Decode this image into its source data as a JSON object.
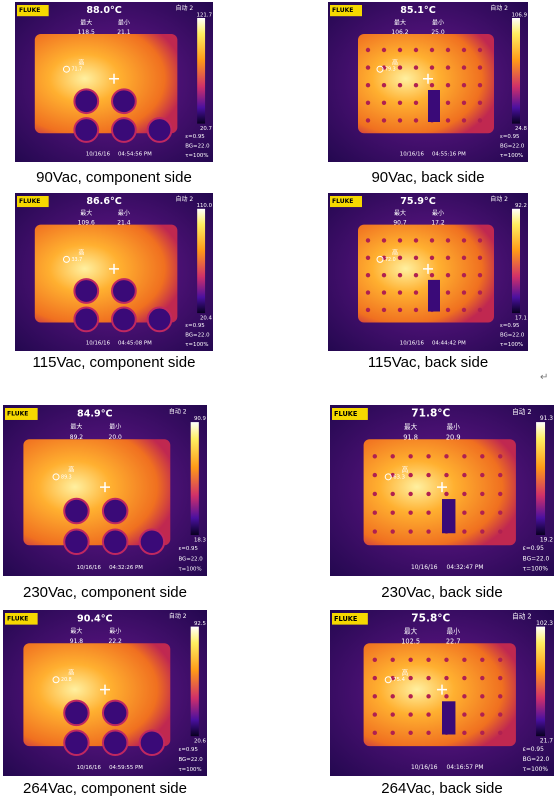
{
  "panels": [
    {
      "caption": "90Vac, component side",
      "brand": "FLUKE",
      "mode": "自动 2",
      "center_temp": "88.0°C",
      "max_label": "最大",
      "max": "118.5",
      "min_label": "最小",
      "min": "21.1",
      "spot": "71.7",
      "hot_marker": "高",
      "scale_max": "121.7",
      "scale_min": "20.7",
      "date": "10/16/16",
      "time": "04:54:56 PM",
      "emissivity": "ε=0.95",
      "background": "BG=22.0",
      "transmission": "τ=100%"
    },
    {
      "caption": "90Vac, back side",
      "brand": "FLUKE",
      "mode": "自动 2",
      "center_temp": "85.1°C",
      "max_label": "最大",
      "max": "106.2",
      "min_label": "最小",
      "min": "25.0",
      "spot": "79.3",
      "hot_marker": "高",
      "scale_max": "106.9",
      "scale_min": "24.8",
      "date": "10/16/16",
      "time": "04:55:16 PM",
      "emissivity": "ε=0.95",
      "background": "BG=22.0",
      "transmission": "τ=100%"
    },
    {
      "caption": "115Vac, component side",
      "brand": "FLUKE",
      "mode": "自动 2",
      "center_temp": "86.6°C",
      "max_label": "最大",
      "max": "109.6",
      "min_label": "最小",
      "min": "21.4",
      "spot": "33.7",
      "hot_marker": "高",
      "scale_max": "110.0",
      "scale_min": "20.4",
      "date": "10/16/16",
      "time": "04:45:08 PM",
      "emissivity": "ε=0.95",
      "background": "BG=22.0",
      "transmission": "τ=100%"
    },
    {
      "caption": "115Vac, back side",
      "brand": "FLUKE",
      "mode": "自动 2",
      "center_temp": "75.9°C",
      "max_label": "最大",
      "max": "90.7",
      "min_label": "最小",
      "min": "17.2",
      "spot": "72.0",
      "hot_marker": "高",
      "scale_max": "92.2",
      "scale_min": "17.1",
      "date": "10/16/16",
      "time": "04:44:42 PM",
      "emissivity": "ε=0.95",
      "background": "BG=22.0",
      "transmission": "τ=100%"
    },
    {
      "caption": "230Vac, component side",
      "brand": "FLUKE",
      "mode": "自动 2",
      "center_temp": "84.9°C",
      "max_label": "最大",
      "max": "89.2",
      "min_label": "最小",
      "min": "20.0",
      "spot": "89.3",
      "hot_marker": "高",
      "scale_max": "90.9",
      "scale_min": "18.3",
      "date": "10/16/16",
      "time": "04:32:26 PM",
      "emissivity": "ε=0.95",
      "background": "BG=22.0",
      "transmission": "τ=100%"
    },
    {
      "caption": "230Vac, back side",
      "brand": "FLUKE",
      "mode": "自动 2",
      "center_temp": "71.8°C",
      "max_label": "最大",
      "max": "91.8",
      "min_label": "最小",
      "min": "20.9",
      "spot": "63.3",
      "hot_marker": "高",
      "scale_max": "91.3",
      "scale_min": "19.2",
      "date": "10/16/16",
      "time": "04:32:47 PM",
      "emissivity": "ε=0.95",
      "background": "BG=22.0",
      "transmission": "τ=100%"
    },
    {
      "caption": "264Vac, component side",
      "brand": "FLUKE",
      "mode": "自动 2",
      "center_temp": "90.4°C",
      "max_label": "最大",
      "max": "91.8",
      "min_label": "最小",
      "min": "22.2",
      "spot": "20.8",
      "hot_marker": "高",
      "scale_max": "92.5",
      "scale_min": "20.6",
      "date": "10/16/16",
      "time": "04:59:55 PM",
      "emissivity": "ε=0.95",
      "background": "BG=22.0",
      "transmission": "τ=100%"
    },
    {
      "caption": "264Vac, back side",
      "brand": "FLUKE",
      "mode": "自动 2",
      "center_temp": "75.8°C",
      "max_label": "最大",
      "max": "102.5",
      "min_label": "最小",
      "min": "22.7",
      "spot": "75.4",
      "hot_marker": "高",
      "scale_max": "102.3",
      "scale_min": "21.7",
      "date": "10/16/16",
      "time": "04:16:57 PM",
      "emissivity": "ε=0.95",
      "background": "BG=22.0",
      "transmission": "τ=100%"
    }
  ],
  "return_mark": "↵"
}
